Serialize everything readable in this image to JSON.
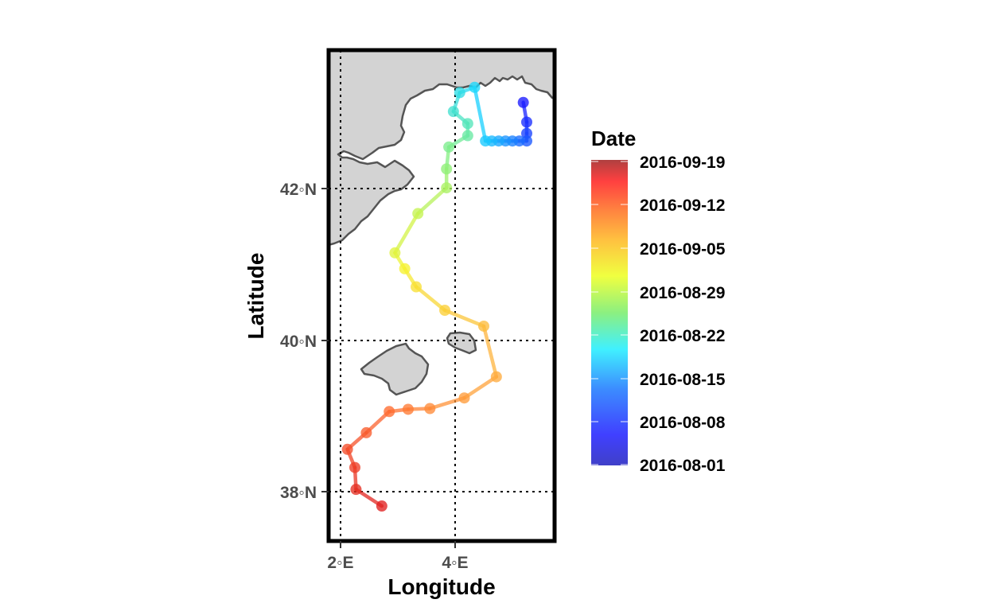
{
  "chart_data": {
    "type": "map-track",
    "xlabel": "Longitude",
    "ylabel": "Latitude",
    "xlim": [
      1.78,
      5.72
    ],
    "ylim": [
      37.32,
      43.82
    ],
    "x_ticks": [
      {
        "value": 2,
        "label": "2◦E"
      },
      {
        "value": 4,
        "label": "4◦E"
      }
    ],
    "y_ticks": [
      {
        "value": 38,
        "label": "38◦N"
      },
      {
        "value": 40,
        "label": "40◦N"
      },
      {
        "value": 42,
        "label": "42◦N"
      }
    ],
    "grid": "dotted at tick values",
    "legend": {
      "title": "Date",
      "position": "right",
      "labels": [
        "2016-09-19",
        "2016-09-12",
        "2016-09-05",
        "2016-08-29",
        "2016-08-22",
        "2016-08-15",
        "2016-08-08",
        "2016-08-01"
      ],
      "colormap": [
        "#4040c8",
        "#4040ff",
        "#3c8cff",
        "#40f0ff",
        "#8cf080",
        "#f0ff40",
        "#ffc040",
        "#ff8040",
        "#ff4040",
        "#b04040"
      ]
    },
    "track_colors": {
      "early": "#1a1aff",
      "mid_blue": "#1aa0ff",
      "cyan": "#1ad8ff",
      "green": "#8cf07a",
      "yellow": "#f5f530",
      "orange": "#ffb040",
      "red_orange": "#ff6a30",
      "red": "#e02020"
    },
    "points": [
      {
        "lon": 5.19,
        "lat": 43.15,
        "date": "2016-08-02"
      },
      {
        "lon": 5.25,
        "lat": 42.89,
        "date": "2016-08-03"
      },
      {
        "lon": 5.25,
        "lat": 42.74,
        "date": "2016-08-04"
      },
      {
        "lon": 5.25,
        "lat": 42.64,
        "date": "2016-08-05"
      },
      {
        "lon": 5.12,
        "lat": 42.64,
        "date": "2016-08-06"
      },
      {
        "lon": 5.0,
        "lat": 42.64,
        "date": "2016-08-07"
      },
      {
        "lon": 4.88,
        "lat": 42.64,
        "date": "2016-08-09"
      },
      {
        "lon": 4.76,
        "lat": 42.64,
        "date": "2016-08-11"
      },
      {
        "lon": 4.64,
        "lat": 42.64,
        "date": "2016-08-13"
      },
      {
        "lon": 4.53,
        "lat": 42.64,
        "date": "2016-08-15"
      },
      {
        "lon": 4.34,
        "lat": 43.35,
        "date": "2016-08-20"
      },
      {
        "lon": 4.08,
        "lat": 43.28,
        "date": "2016-08-21"
      },
      {
        "lon": 3.97,
        "lat": 43.03,
        "date": "2016-08-22"
      },
      {
        "lon": 4.22,
        "lat": 42.87,
        "date": "2016-08-23"
      },
      {
        "lon": 4.22,
        "lat": 42.71,
        "date": "2016-08-24"
      },
      {
        "lon": 3.89,
        "lat": 42.56,
        "date": "2016-08-25"
      },
      {
        "lon": 3.85,
        "lat": 42.27,
        "date": "2016-08-26"
      },
      {
        "lon": 3.85,
        "lat": 42.02,
        "date": "2016-08-27"
      },
      {
        "lon": 3.35,
        "lat": 41.68,
        "date": "2016-08-28"
      },
      {
        "lon": 2.95,
        "lat": 41.16,
        "date": "2016-08-30"
      },
      {
        "lon": 3.12,
        "lat": 40.95,
        "date": "2016-08-31"
      },
      {
        "lon": 3.32,
        "lat": 40.71,
        "date": "2016-09-01"
      },
      {
        "lon": 3.82,
        "lat": 40.4,
        "date": "2016-09-02"
      },
      {
        "lon": 4.5,
        "lat": 40.19,
        "date": "2016-09-04"
      },
      {
        "lon": 4.72,
        "lat": 39.52,
        "date": "2016-09-06"
      },
      {
        "lon": 4.16,
        "lat": 39.24,
        "date": "2016-09-08"
      },
      {
        "lon": 3.56,
        "lat": 39.1,
        "date": "2016-09-09"
      },
      {
        "lon": 3.18,
        "lat": 39.09,
        "date": "2016-09-10"
      },
      {
        "lon": 2.85,
        "lat": 39.06,
        "date": "2016-09-11"
      },
      {
        "lon": 2.45,
        "lat": 38.78,
        "date": "2016-09-12"
      },
      {
        "lon": 2.12,
        "lat": 38.56,
        "date": "2016-09-13"
      },
      {
        "lon": 2.25,
        "lat": 38.32,
        "date": "2016-09-14"
      },
      {
        "lon": 2.27,
        "lat": 38.03,
        "date": "2016-09-15"
      },
      {
        "lon": 2.72,
        "lat": 37.81,
        "date": "2016-09-16"
      }
    ]
  }
}
